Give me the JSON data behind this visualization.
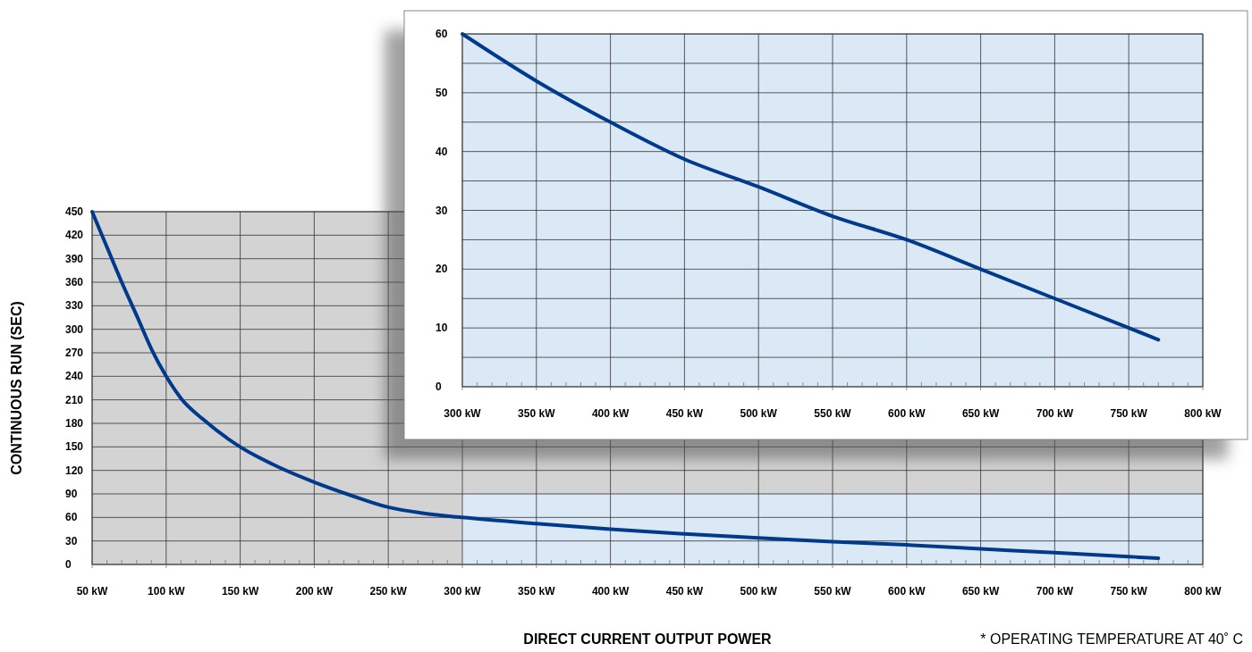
{
  "chart_data": [
    {
      "type": "line",
      "xlabel": "DIRECT CURRENT OUTPUT POWER",
      "ylabel": "CONTINUOUS RUN (SEC)",
      "annotations": [
        "* OPERATING TEMPERATURE AT 40˚ C"
      ],
      "x": [
        50,
        60,
        70,
        80,
        90,
        100,
        110,
        125,
        150,
        175,
        200,
        225,
        250,
        275,
        300,
        350,
        400,
        450,
        500,
        550,
        600,
        650,
        700,
        750,
        770
      ],
      "series": [
        {
          "color": "#003a8c",
          "values": [
            450,
            405,
            360,
            318,
            275,
            240,
            212,
            185,
            150,
            125,
            105,
            88,
            73,
            65,
            60,
            52,
            45,
            39,
            34,
            29,
            25,
            20,
            15,
            10,
            8
          ]
        }
      ],
      "xlim": [
        50,
        800
      ],
      "ylim": [
        0,
        450
      ],
      "xticks": [
        {
          "value": 50,
          "label": "50 kW"
        },
        {
          "value": 60,
          "label": null
        },
        {
          "value": 70,
          "label": null
        },
        {
          "value": 80,
          "label": null
        },
        {
          "value": 90,
          "label": null
        },
        {
          "value": 100,
          "label": "100 kW"
        },
        {
          "value": 110,
          "label": null
        },
        {
          "value": 120,
          "label": null
        },
        {
          "value": 130,
          "label": null
        },
        {
          "value": 140,
          "label": null
        },
        {
          "value": 150,
          "label": "150 kW"
        },
        {
          "value": 160,
          "label": null
        },
        {
          "value": 170,
          "label": null
        },
        {
          "value": 180,
          "label": null
        },
        {
          "value": 190,
          "label": null
        },
        {
          "value": 200,
          "label": "200 kW"
        },
        {
          "value": 210,
          "label": null
        },
        {
          "value": 220,
          "label": null
        },
        {
          "value": 230,
          "label": null
        },
        {
          "value": 240,
          "label": null
        },
        {
          "value": 250,
          "label": "250 kW"
        },
        {
          "value": 260,
          "label": null
        },
        {
          "value": 270,
          "label": null
        },
        {
          "value": 280,
          "label": null
        },
        {
          "value": 290,
          "label": null
        },
        {
          "value": 300,
          "label": "300 kW"
        },
        {
          "value": 310,
          "label": null
        },
        {
          "value": 320,
          "label": null
        },
        {
          "value": 330,
          "label": null
        },
        {
          "value": 340,
          "label": null
        },
        {
          "value": 350,
          "label": "350 kW"
        },
        {
          "value": 360,
          "label": null
        },
        {
          "value": 370,
          "label": null
        },
        {
          "value": 380,
          "label": null
        },
        {
          "value": 390,
          "label": null
        },
        {
          "value": 400,
          "label": "400 kW"
        },
        {
          "value": 410,
          "label": null
        },
        {
          "value": 420,
          "label": null
        },
        {
          "value": 430,
          "label": null
        },
        {
          "value": 440,
          "label": null
        },
        {
          "value": 450,
          "label": "450 kW"
        },
        {
          "value": 460,
          "label": null
        },
        {
          "value": 470,
          "label": null
        },
        {
          "value": 480,
          "label": null
        },
        {
          "value": 490,
          "label": null
        },
        {
          "value": 500,
          "label": "500 kW"
        },
        {
          "value": 510,
          "label": null
        },
        {
          "value": 520,
          "label": null
        },
        {
          "value": 530,
          "label": null
        },
        {
          "value": 540,
          "label": null
        },
        {
          "value": 550,
          "label": "550 kW"
        },
        {
          "value": 560,
          "label": null
        },
        {
          "value": 570,
          "label": null
        },
        {
          "value": 580,
          "label": null
        },
        {
          "value": 590,
          "label": null
        },
        {
          "value": 600,
          "label": "600 kW"
        },
        {
          "value": 610,
          "label": null
        },
        {
          "value": 620,
          "label": null
        },
        {
          "value": 630,
          "label": null
        },
        {
          "value": 640,
          "label": null
        },
        {
          "value": 650,
          "label": "650 kW"
        },
        {
          "value": 660,
          "label": null
        },
        {
          "value": 670,
          "label": null
        },
        {
          "value": 680,
          "label": null
        },
        {
          "value": 690,
          "label": null
        },
        {
          "value": 700,
          "label": "700 kW"
        },
        {
          "value": 710,
          "label": null
        },
        {
          "value": 720,
          "label": null
        },
        {
          "value": 730,
          "label": null
        },
        {
          "value": 740,
          "label": null
        },
        {
          "value": 750,
          "label": "750 kW"
        },
        {
          "value": 760,
          "label": null
        },
        {
          "value": 770,
          "label": null
        },
        {
          "value": 780,
          "label": null
        },
        {
          "value": 790,
          "label": null
        },
        {
          "value": 800,
          "label": "800 kW"
        }
      ],
      "yticks": [
        0,
        30,
        60,
        90,
        120,
        150,
        180,
        210,
        240,
        270,
        300,
        330,
        360,
        390,
        420,
        450
      ],
      "grid": true,
      "bands": [
        {
          "axis": "x",
          "from": 50,
          "to": 300,
          "color": "#d3d3d3"
        },
        {
          "axis": "y",
          "from": 90,
          "to": 450,
          "color": "#d3d3d3"
        }
      ]
    },
    {
      "type": "line",
      "x": [
        300,
        350,
        400,
        450,
        500,
        550,
        600,
        650,
        700,
        750,
        770
      ],
      "series": [
        {
          "color": "#003a8c",
          "values": [
            60,
            52,
            45,
            38.7,
            34,
            29,
            25,
            20,
            15,
            10,
            8
          ]
        }
      ],
      "xlim": [
        300,
        800
      ],
      "ylim": [
        0,
        60
      ],
      "xticks": [
        {
          "value": 300,
          "label": "300 kW"
        },
        {
          "value": 310,
          "label": null
        },
        {
          "value": 320,
          "label": null
        },
        {
          "value": 330,
          "label": null
        },
        {
          "value": 340,
          "label": null
        },
        {
          "value": 350,
          "label": "350 kW"
        },
        {
          "value": 360,
          "label": null
        },
        {
          "value": 370,
          "label": null
        },
        {
          "value": 380,
          "label": null
        },
        {
          "value": 390,
          "label": null
        },
        {
          "value": 400,
          "label": "400 kW"
        },
        {
          "value": 410,
          "label": null
        },
        {
          "value": 420,
          "label": null
        },
        {
          "value": 430,
          "label": null
        },
        {
          "value": 440,
          "label": null
        },
        {
          "value": 450,
          "label": "450 kW"
        },
        {
          "value": 460,
          "label": null
        },
        {
          "value": 470,
          "label": null
        },
        {
          "value": 480,
          "label": null
        },
        {
          "value": 490,
          "label": null
        },
        {
          "value": 500,
          "label": "500 kW"
        },
        {
          "value": 510,
          "label": null
        },
        {
          "value": 520,
          "label": null
        },
        {
          "value": 530,
          "label": null
        },
        {
          "value": 540,
          "label": null
        },
        {
          "value": 550,
          "label": "550 kW"
        },
        {
          "value": 560,
          "label": null
        },
        {
          "value": 570,
          "label": null
        },
        {
          "value": 580,
          "label": null
        },
        {
          "value": 590,
          "label": null
        },
        {
          "value": 600,
          "label": "600 kW"
        },
        {
          "value": 610,
          "label": null
        },
        {
          "value": 620,
          "label": null
        },
        {
          "value": 630,
          "label": null
        },
        {
          "value": 640,
          "label": null
        },
        {
          "value": 650,
          "label": "650 kW"
        },
        {
          "value": 660,
          "label": null
        },
        {
          "value": 670,
          "label": null
        },
        {
          "value": 680,
          "label": null
        },
        {
          "value": 690,
          "label": null
        },
        {
          "value": 700,
          "label": "700 kW"
        },
        {
          "value": 710,
          "label": null
        },
        {
          "value": 720,
          "label": null
        },
        {
          "value": 730,
          "label": null
        },
        {
          "value": 740,
          "label": null
        },
        {
          "value": 750,
          "label": "750 kW"
        },
        {
          "value": 760,
          "label": null
        },
        {
          "value": 770,
          "label": null
        },
        {
          "value": 780,
          "label": null
        },
        {
          "value": 790,
          "label": null
        },
        {
          "value": 800,
          "label": "800 kW"
        }
      ],
      "yticks": [
        0,
        {
          "value": 5,
          "label": null
        },
        10,
        {
          "value": 15,
          "label": null
        },
        20,
        {
          "value": 25,
          "label": null
        },
        30,
        {
          "value": 35,
          "label": null
        },
        40,
        {
          "value": 45,
          "label": null
        },
        50,
        {
          "value": 55,
          "label": null
        },
        60
      ],
      "grid": true
    }
  ]
}
